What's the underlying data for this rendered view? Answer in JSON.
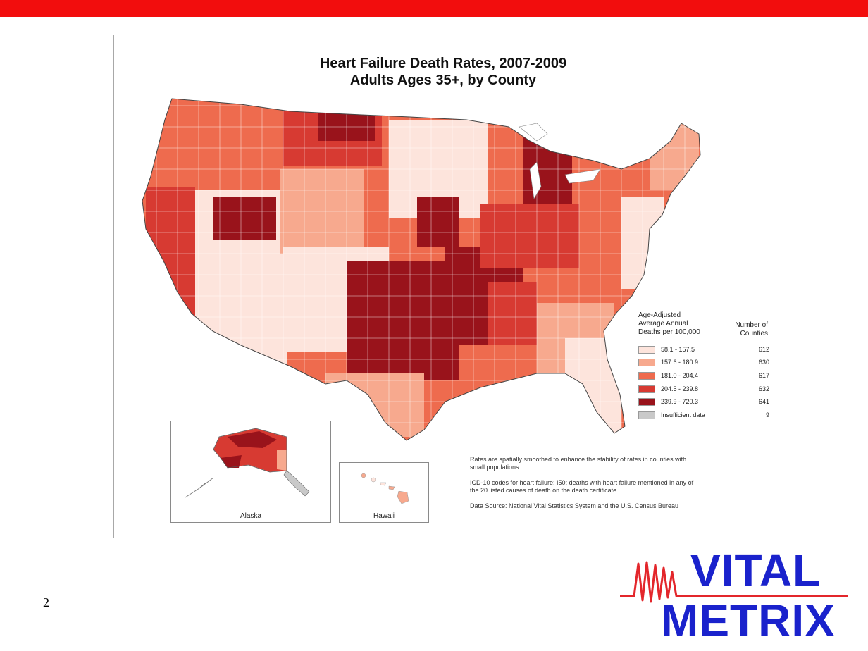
{
  "slide": {
    "page_number": "2"
  },
  "colors": {
    "top_bar": "#f20d0d",
    "class1": "#fde4dc",
    "class2": "#f7a98e",
    "class3": "#ee6b4e",
    "class4": "#d73a32",
    "class5": "#99131b",
    "insufficient": "#c9c9c9",
    "logo_red": "#e3262b",
    "logo_blue": "#1a22cc"
  },
  "map": {
    "title_line1": "Heart Failure Death Rates, 2007-2009",
    "title_line2": "Adults Ages 35+, by County",
    "legend": {
      "heading": [
        "Age-Adjusted",
        "Average Annual",
        "Deaths per 100,000"
      ],
      "count_heading": [
        "Number of",
        "Counties"
      ],
      "classes": [
        {
          "label": "58.1 - 157.5",
          "count": "612",
          "color": "#fde4dc"
        },
        {
          "label": "157.6 - 180.9",
          "count": "630",
          "color": "#f7a98e"
        },
        {
          "label": "181.0 - 204.4",
          "count": "617",
          "color": "#ee6b4e"
        },
        {
          "label": "204.5 - 239.8",
          "count": "632",
          "color": "#d73a32"
        },
        {
          "label": "239.9 - 720.3",
          "count": "641",
          "color": "#99131b"
        },
        {
          "label": "Insufficient data",
          "count": "9",
          "color": "#c9c9c9"
        }
      ]
    },
    "insets": {
      "alaska_label": "Alaska",
      "hawaii_label": "Hawaii"
    },
    "notes": [
      "Rates are spatially smoothed to enhance the stability of rates in counties with small populations.",
      "ICD-10 codes for heart failure: I50; deaths with heart failure mentioned in any of the 20 listed causes of death on the death certificate.",
      "Data Source: National Vital Statistics System and the U.S. Census Bureau"
    ]
  },
  "logo": {
    "word1": "VITAL",
    "word2": "METRIX"
  }
}
